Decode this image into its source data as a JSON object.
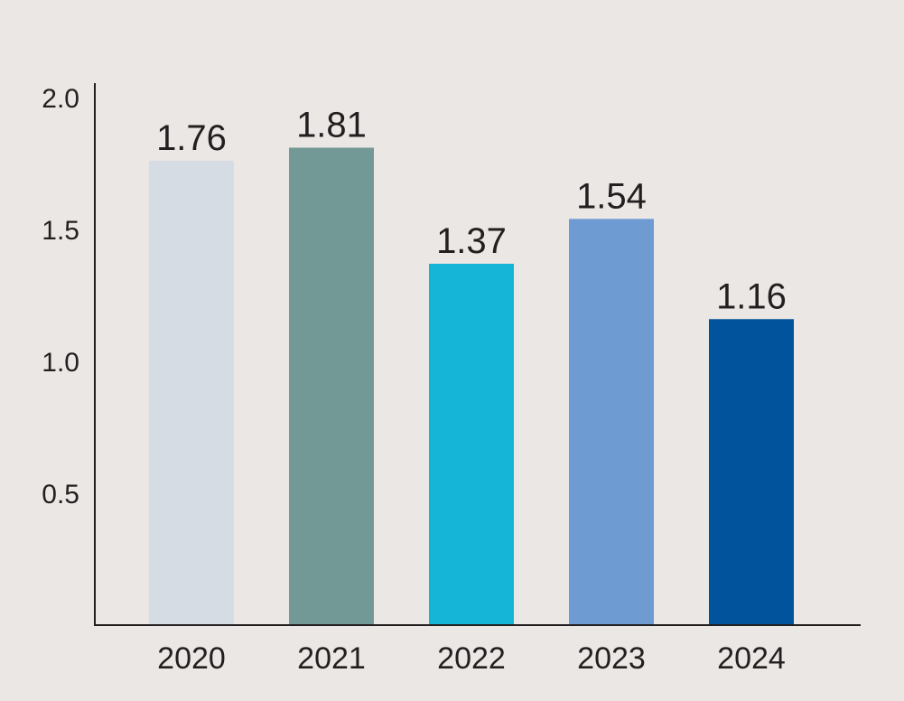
{
  "chart_data": {
    "type": "bar",
    "categories": [
      "2020",
      "2021",
      "2022",
      "2023",
      "2024"
    ],
    "values": [
      1.76,
      1.81,
      1.37,
      1.54,
      1.16
    ],
    "value_labels": [
      "1.76",
      "1.81",
      "1.37",
      "1.54",
      "1.16"
    ],
    "bar_colors": [
      "#d5dce3",
      "#739996",
      "#14b5d7",
      "#6e9bd1",
      "#01539c"
    ],
    "y_ticks": [
      0.5,
      1.0,
      1.5,
      2.0
    ],
    "y_tick_labels": [
      "0.5",
      "1.0",
      "1.5",
      "2.0"
    ],
    "ylim": [
      0,
      2.0
    ],
    "title": "",
    "xlabel": "",
    "ylabel": "",
    "grid": false,
    "legend": "none",
    "background_color": "#ebe7e4",
    "axis_color": "#231f20"
  }
}
